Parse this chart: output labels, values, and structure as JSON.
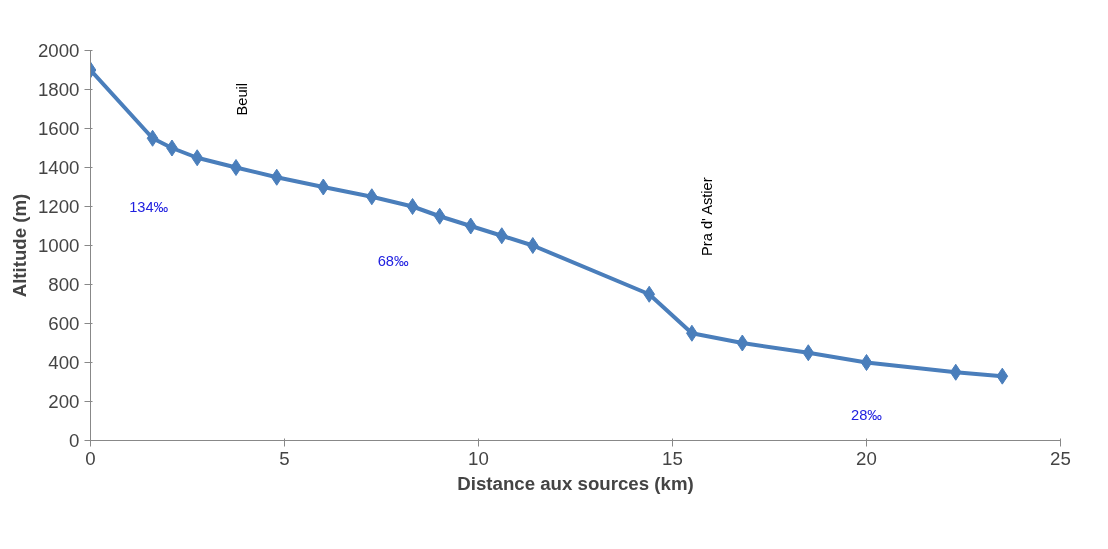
{
  "chart_data": {
    "type": "line",
    "xlabel": "Distance aux sources (km)",
    "ylabel": "Altitude (m)",
    "xlim": [
      0,
      25
    ],
    "xticks": [
      0,
      5,
      10,
      15,
      20,
      25
    ],
    "ylim": [
      0,
      2000
    ],
    "yticks": [
      0,
      200,
      400,
      600,
      800,
      1000,
      1200,
      1400,
      1600,
      1800,
      2000
    ],
    "grid": false,
    "marker": "diamond",
    "line_style": "solid",
    "series": [
      {
        "color": "#4a7ebb",
        "x": [
          0,
          1.6,
          2.1,
          2.75,
          3.75,
          4.8,
          6.0,
          7.25,
          8.3,
          9.0,
          9.8,
          10.6,
          11.4,
          14.4,
          15.5,
          16.8,
          18.5,
          20.0,
          22.3,
          23.5
        ],
        "values": [
          1900,
          1550,
          1500,
          1450,
          1400,
          1350,
          1300,
          1250,
          1200,
          1150,
          1100,
          1050,
          1000,
          750,
          550,
          500,
          450,
          400,
          350,
          330
        ]
      }
    ],
    "annotations": [
      "Beuil",
      "Pra d' Astier",
      "134‰",
      "68‰",
      "28‰"
    ]
  }
}
